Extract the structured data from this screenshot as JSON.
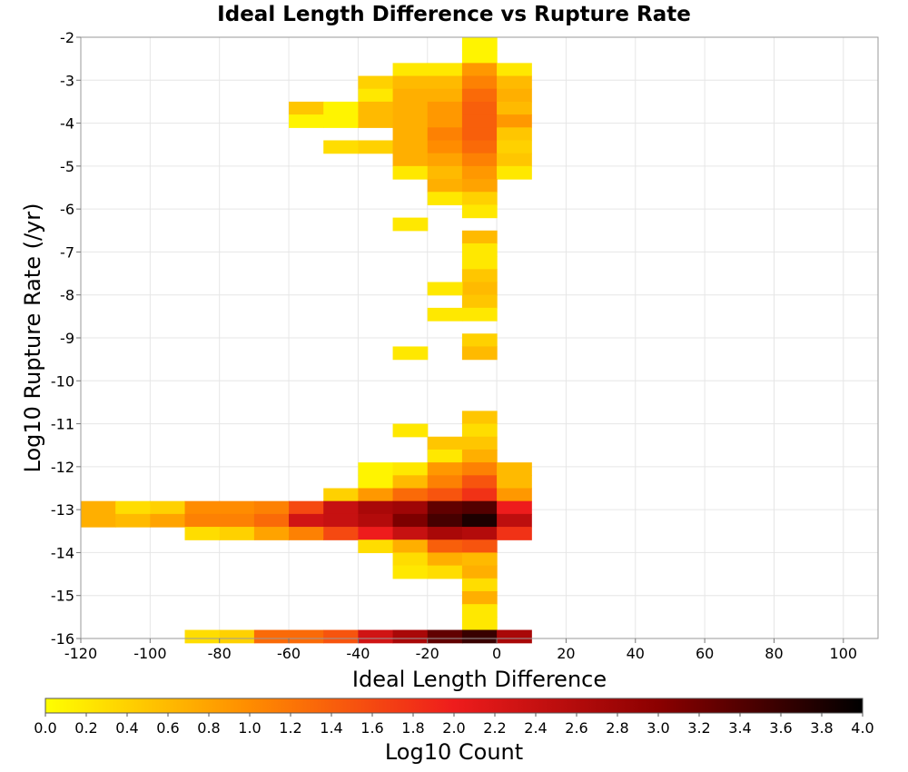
{
  "chart_data": {
    "type": "heatmap",
    "title": "Ideal Length Difference vs Rupture Rate",
    "xlabel": "Ideal Length Difference",
    "ylabel": "Log10 Rupture Rate (/yr)",
    "xlim": [
      -120,
      110
    ],
    "ylim": [
      -16,
      -2
    ],
    "x_ticks": [
      -120,
      -100,
      -80,
      -60,
      -40,
      -20,
      0,
      20,
      40,
      60,
      80,
      100
    ],
    "y_ticks": [
      -2,
      -3,
      -4,
      -5,
      -6,
      -7,
      -8,
      -9,
      -10,
      -11,
      -12,
      -13,
      -14,
      -15,
      -16
    ],
    "x_bin_width": 10,
    "y_bin_height": 0.3,
    "grid": true,
    "colorbar": {
      "label": "Log10 Count",
      "min": 0.0,
      "max": 4.0,
      "ticks": [
        "0.0",
        "0.2",
        "0.4",
        "0.6",
        "0.8",
        "1.0",
        "1.2",
        "1.4",
        "1.6",
        "1.8",
        "2.0",
        "2.2",
        "2.4",
        "2.6",
        "2.8",
        "3.0",
        "3.2",
        "3.4",
        "3.6",
        "3.8",
        "4.0"
      ],
      "colors": [
        "#ffff00",
        "#ff8c00",
        "#ee1c1c",
        "#8b0000",
        "#000000"
      ]
    },
    "cells": [
      [
        -10,
        -2.15,
        0.1
      ],
      [
        -10,
        -2.45,
        0.1
      ],
      [
        -30,
        -2.75,
        0.2
      ],
      [
        -20,
        -2.75,
        0.2
      ],
      [
        -10,
        -2.75,
        0.9
      ],
      [
        0,
        -2.75,
        0.2
      ],
      [
        -40,
        -3.05,
        0.4
      ],
      [
        -30,
        -3.05,
        0.6
      ],
      [
        -20,
        -3.05,
        0.6
      ],
      [
        -10,
        -3.05,
        1.1
      ],
      [
        0,
        -3.05,
        0.6
      ],
      [
        -40,
        -3.35,
        0.2
      ],
      [
        -30,
        -3.35,
        0.7
      ],
      [
        -20,
        -3.35,
        0.7
      ],
      [
        -10,
        -3.35,
        1.3
      ],
      [
        0,
        -3.35,
        0.7
      ],
      [
        -60,
        -3.65,
        0.5
      ],
      [
        -50,
        -3.65,
        0.1
      ],
      [
        -40,
        -3.65,
        0.6
      ],
      [
        -30,
        -3.65,
        0.7
      ],
      [
        -20,
        -3.65,
        0.9
      ],
      [
        -10,
        -3.65,
        1.4
      ],
      [
        0,
        -3.65,
        0.6
      ],
      [
        -60,
        -3.95,
        0.1
      ],
      [
        -50,
        -3.95,
        0.1
      ],
      [
        -40,
        -3.95,
        0.6
      ],
      [
        -30,
        -3.95,
        0.7
      ],
      [
        -20,
        -3.95,
        0.9
      ],
      [
        -10,
        -3.95,
        1.4
      ],
      [
        0,
        -3.95,
        0.9
      ],
      [
        -30,
        -4.25,
        0.7
      ],
      [
        -20,
        -4.25,
        1.1
      ],
      [
        -10,
        -4.25,
        1.4
      ],
      [
        0,
        -4.25,
        0.5
      ],
      [
        -50,
        -4.55,
        0.3
      ],
      [
        -40,
        -4.55,
        0.4
      ],
      [
        -30,
        -4.55,
        0.7
      ],
      [
        -20,
        -4.55,
        1.0
      ],
      [
        -10,
        -4.55,
        1.3
      ],
      [
        0,
        -4.55,
        0.4
      ],
      [
        -30,
        -4.85,
        0.7
      ],
      [
        -20,
        -4.85,
        0.8
      ],
      [
        -10,
        -4.85,
        1.1
      ],
      [
        0,
        -4.85,
        0.5
      ],
      [
        -30,
        -5.15,
        0.2
      ],
      [
        -20,
        -5.15,
        0.6
      ],
      [
        -10,
        -5.15,
        0.9
      ],
      [
        0,
        -5.15,
        0.2
      ],
      [
        -20,
        -5.45,
        0.7
      ],
      [
        -10,
        -5.45,
        0.8
      ],
      [
        -20,
        -5.75,
        0.2
      ],
      [
        -10,
        -5.75,
        0.4
      ],
      [
        -10,
        -6.05,
        0.2
      ],
      [
        -30,
        -6.35,
        0.2
      ],
      [
        -10,
        -6.65,
        0.6
      ],
      [
        -10,
        -6.95,
        0.2
      ],
      [
        -10,
        -7.25,
        0.2
      ],
      [
        -10,
        -7.55,
        0.5
      ],
      [
        -10,
        -7.85,
        0.6
      ],
      [
        -20,
        -7.85,
        0.2
      ],
      [
        -10,
        -8.15,
        0.5
      ],
      [
        -20,
        -8.45,
        0.2
      ],
      [
        -10,
        -8.45,
        0.2
      ],
      [
        -10,
        -9.05,
        0.4
      ],
      [
        -30,
        -9.35,
        0.2
      ],
      [
        -10,
        -9.35,
        0.6
      ],
      [
        -10,
        -10.85,
        0.5
      ],
      [
        -30,
        -11.15,
        0.2
      ],
      [
        -10,
        -11.15,
        0.3
      ],
      [
        -20,
        -11.45,
        0.5
      ],
      [
        -10,
        -11.45,
        0.5
      ],
      [
        -20,
        -11.75,
        0.2
      ],
      [
        -10,
        -11.75,
        0.7
      ],
      [
        -40,
        -12.05,
        0.1
      ],
      [
        -30,
        -12.05,
        0.2
      ],
      [
        -20,
        -12.05,
        0.9
      ],
      [
        -10,
        -12.05,
        1.1
      ],
      [
        0,
        -12.05,
        0.6
      ],
      [
        -40,
        -12.35,
        0.1
      ],
      [
        -30,
        -12.35,
        0.6
      ],
      [
        -20,
        -12.35,
        1.1
      ],
      [
        -10,
        -12.35,
        1.5
      ],
      [
        0,
        -12.35,
        0.6
      ],
      [
        -50,
        -12.65,
        0.4
      ],
      [
        -40,
        -12.65,
        0.9
      ],
      [
        -30,
        -12.65,
        1.3
      ],
      [
        -20,
        -12.65,
        1.5
      ],
      [
        -10,
        -12.65,
        1.8
      ],
      [
        0,
        -12.65,
        0.9
      ],
      [
        -120,
        -12.95,
        0.7
      ],
      [
        -110,
        -12.95,
        0.3
      ],
      [
        -100,
        -12.95,
        0.4
      ],
      [
        -90,
        -12.95,
        1.0
      ],
      [
        -80,
        -12.95,
        1.0
      ],
      [
        -70,
        -12.95,
        1.1
      ],
      [
        -60,
        -12.95,
        1.6
      ],
      [
        -50,
        -12.95,
        2.4
      ],
      [
        -40,
        -12.95,
        2.7
      ],
      [
        -30,
        -12.95,
        2.8
      ],
      [
        -20,
        -12.95,
        3.3
      ],
      [
        -10,
        -12.95,
        3.4
      ],
      [
        0,
        -12.95,
        2.0
      ],
      [
        -120,
        -13.25,
        0.7
      ],
      [
        -110,
        -13.25,
        0.6
      ],
      [
        -100,
        -13.25,
        0.8
      ],
      [
        -90,
        -13.25,
        1.1
      ],
      [
        -80,
        -13.25,
        1.1
      ],
      [
        -70,
        -13.25,
        1.3
      ],
      [
        -60,
        -13.25,
        2.3
      ],
      [
        -50,
        -13.25,
        2.4
      ],
      [
        -40,
        -13.25,
        2.6
      ],
      [
        -30,
        -13.25,
        3.1
      ],
      [
        -20,
        -13.25,
        3.5
      ],
      [
        -10,
        -13.25,
        3.8
      ],
      [
        0,
        -13.25,
        2.5
      ],
      [
        -90,
        -13.55,
        0.3
      ],
      [
        -80,
        -13.55,
        0.4
      ],
      [
        -70,
        -13.55,
        0.8
      ],
      [
        -60,
        -13.55,
        1.1
      ],
      [
        -50,
        -13.55,
        1.6
      ],
      [
        -40,
        -13.55,
        2.0
      ],
      [
        -30,
        -13.55,
        2.4
      ],
      [
        -20,
        -13.55,
        2.7
      ],
      [
        -10,
        -13.55,
        2.6
      ],
      [
        0,
        -13.55,
        1.8
      ],
      [
        -40,
        -13.85,
        0.3
      ],
      [
        -30,
        -13.85,
        0.7
      ],
      [
        -20,
        -13.85,
        1.4
      ],
      [
        -10,
        -13.85,
        1.5
      ],
      [
        -30,
        -14.15,
        0.3
      ],
      [
        -20,
        -14.15,
        0.7
      ],
      [
        -10,
        -14.15,
        0.6
      ],
      [
        -30,
        -14.45,
        0.2
      ],
      [
        -20,
        -14.45,
        0.3
      ],
      [
        -10,
        -14.45,
        0.7
      ],
      [
        -10,
        -14.75,
        0.3
      ],
      [
        -10,
        -15.05,
        0.7
      ],
      [
        -10,
        -15.35,
        0.2
      ],
      [
        -10,
        -15.65,
        0.2
      ],
      [
        -90,
        -15.95,
        0.3
      ],
      [
        -80,
        -15.95,
        0.4
      ],
      [
        -70,
        -15.95,
        1.3
      ],
      [
        -60,
        -15.95,
        1.3
      ],
      [
        -50,
        -15.95,
        1.5
      ],
      [
        -40,
        -15.95,
        2.3
      ],
      [
        -30,
        -15.95,
        2.7
      ],
      [
        -20,
        -15.95,
        3.3
      ],
      [
        -10,
        -15.95,
        3.6
      ],
      [
        0,
        -15.95,
        2.7
      ]
    ]
  }
}
